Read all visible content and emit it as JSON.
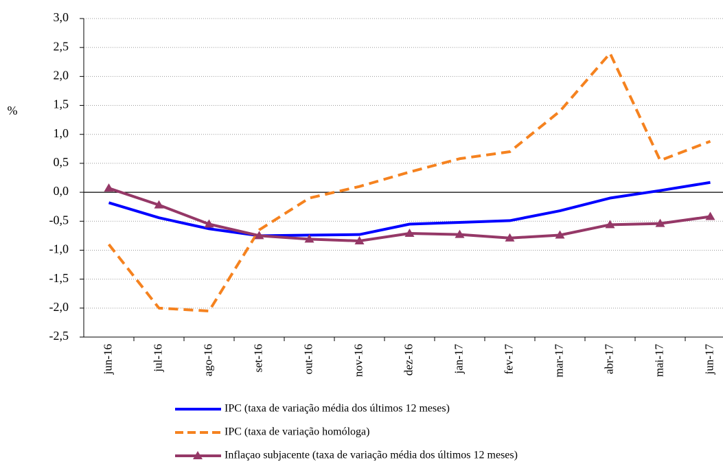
{
  "chart_data": {
    "type": "line",
    "y_label": "%",
    "categories": [
      "jun-16",
      "jul-16",
      "ago-16",
      "set-16",
      "out-16",
      "nov-16",
      "dez-16",
      "jan-17",
      "fev-17",
      "mar-17",
      "abr-17",
      "mai-17",
      "jun-17"
    ],
    "series": [
      {
        "name": "IPC (taxa de variação média dos últimos 12 meses)",
        "color": "#0000ff",
        "style": "solid",
        "values": [
          -0.18,
          -0.44,
          -0.63,
          -0.75,
          -0.74,
          -0.73,
          -0.55,
          -0.52,
          -0.49,
          -0.32,
          -0.1,
          0.03,
          0.17
        ]
      },
      {
        "name": "IPC (taxa de variação homóloga)",
        "color": "#f5821f",
        "style": "dashed",
        "values": [
          -0.9,
          -2.0,
          -2.05,
          -0.65,
          -0.1,
          0.1,
          0.35,
          0.58,
          0.7,
          1.4,
          2.4,
          0.55,
          0.88
        ]
      },
      {
        "name": "Inflaçao subjacente (taxa de variação média dos últimos 12 meses)",
        "color": "#953867",
        "style": "solid",
        "marker": "triangle",
        "values": [
          0.07,
          -0.22,
          -0.55,
          -0.75,
          -0.81,
          -0.84,
          -0.71,
          -0.73,
          -0.79,
          -0.74,
          -0.56,
          -0.54,
          -0.42
        ]
      }
    ],
    "ylim": [
      -2.5,
      3.0
    ],
    "yticks": [
      {
        "value": -2.5,
        "label": "-2,5"
      },
      {
        "value": -2.0,
        "label": "-2,0"
      },
      {
        "value": -1.5,
        "label": "-1,5"
      },
      {
        "value": -1.0,
        "label": "-1,0"
      },
      {
        "value": -0.5,
        "label": "-0,5"
      },
      {
        "value": 0,
        "label": "0,0"
      },
      {
        "value": 0.5,
        "label": "0,5"
      },
      {
        "value": 1.0,
        "label": "1,0"
      },
      {
        "value": 1.5,
        "label": "1,5"
      },
      {
        "value": 2.0,
        "label": "2,0"
      },
      {
        "value": 2.5,
        "label": "2,5"
      },
      {
        "value": 3.0,
        "label": "3,0"
      }
    ],
    "grid": true
  }
}
